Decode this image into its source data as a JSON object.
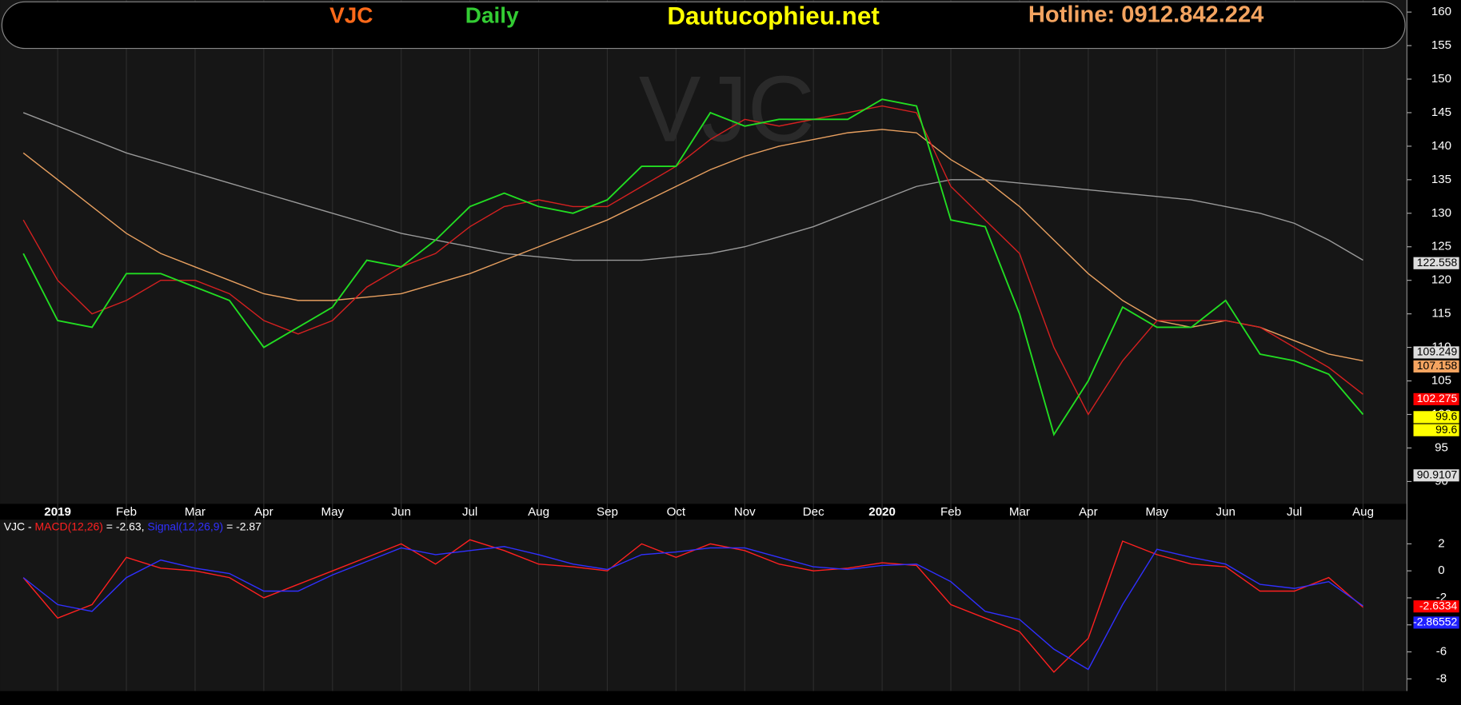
{
  "header": {
    "symbol": "VJC",
    "period": "Daily",
    "site": "Dautucophieu.net",
    "hotline": "Hotline: 0912.842.224",
    "watermark": "VJC"
  },
  "macd_legend": {
    "prefix": "VJC - ",
    "macd": "MACD(12,26)",
    "macd_value": " = -2.63, ",
    "signal": "Signal(12,26,9)",
    "signal_value": " = -2.87"
  },
  "chart_data": [
    {
      "type": "line",
      "categories": [
        null,
        "2019",
        null,
        "Feb",
        null,
        "Mar",
        null,
        "Apr",
        null,
        "May",
        null,
        "Jun",
        null,
        "Jul",
        null,
        "Aug",
        null,
        "Sep",
        null,
        "Oct",
        null,
        "Nov",
        null,
        "Dec",
        null,
        "2020",
        null,
        "Feb",
        null,
        "Mar",
        null,
        "Apr",
        null,
        "May",
        null,
        "Jun",
        null,
        "Jul",
        null,
        "Aug"
      ],
      "series": [
        {
          "color": "#9a9a9a",
          "values": [
            145,
            143,
            141,
            139,
            137.5,
            136,
            134.5,
            133,
            131.5,
            130,
            128.5,
            127,
            126,
            125,
            124,
            123.5,
            123,
            123,
            123,
            123.5,
            124,
            125,
            126.5,
            128,
            130,
            132,
            134,
            135,
            135,
            134.5,
            134,
            133.5,
            133,
            132.5,
            132,
            131,
            130,
            128.5,
            126,
            123
          ]
        },
        {
          "color": "#e8a060",
          "values": [
            139,
            135,
            131,
            127,
            124,
            122,
            120,
            118,
            117,
            117,
            117.5,
            118,
            119.5,
            121,
            123,
            125,
            127,
            129,
            131.5,
            134,
            136.5,
            138.5,
            140,
            141,
            142,
            142.5,
            142,
            138,
            135,
            131,
            126,
            121,
            117,
            114,
            113,
            114,
            113,
            111,
            109,
            108
          ]
        },
        {
          "color": "#d42020",
          "values": [
            129,
            120,
            115,
            117,
            120,
            120,
            118,
            114,
            112,
            114,
            119,
            122,
            124,
            128,
            131,
            132,
            131,
            131,
            134,
            137,
            141,
            144,
            143,
            144,
            145,
            146,
            145,
            134,
            129,
            124,
            110,
            100,
            108,
            114,
            114,
            114,
            113,
            110,
            107,
            103
          ]
        },
        {
          "color": "#22dd22",
          "values": [
            124,
            114,
            113,
            121,
            121,
            119,
            117,
            110,
            113,
            116,
            123,
            122,
            126,
            131,
            133,
            131,
            130,
            132,
            137,
            137,
            145,
            143,
            144,
            144,
            144,
            147,
            146,
            129,
            128,
            115,
            97,
            105,
            116,
            113,
            113,
            117,
            109,
            108,
            106,
            100
          ]
        }
      ],
      "ylim": [
        86.67,
        161.8
      ],
      "yticks": [
        90,
        95,
        100,
        105,
        110,
        115,
        120,
        125,
        130,
        135,
        140,
        145,
        150,
        155,
        160
      ],
      "price_labels": [
        {
          "value": 122.558,
          "color": "#dddddd"
        },
        {
          "value": 109.249,
          "color": "#dddddd"
        },
        {
          "value": 107.158,
          "color": "#f4a460"
        },
        {
          "value": 102.275,
          "color": "#ff0000"
        },
        {
          "value": 99.6,
          "color": "#ffff00"
        },
        {
          "value": 99.6,
          "color": "#ffff00"
        },
        {
          "value": 90.9107,
          "color": "#dddddd"
        }
      ]
    },
    {
      "type": "line",
      "series": [
        {
          "color": "#ff2020",
          "values": [
            -0.5,
            -3.5,
            -2.5,
            1,
            0.2,
            0,
            -0.5,
            -2,
            -1,
            0,
            1,
            2,
            0.5,
            2.3,
            1.5,
            0.5,
            0.3,
            0,
            2,
            1,
            2,
            1.5,
            0.5,
            0,
            0.2,
            0.6,
            0.4,
            -2.5,
            -3.5,
            -4.5,
            -7.5,
            -5,
            2.2,
            1.2,
            0.5,
            0.3,
            -1.5,
            -1.5,
            -0.5,
            -2.7
          ]
        },
        {
          "color": "#3030ff",
          "values": [
            -0.5,
            -2.5,
            -3,
            -0.5,
            0.8,
            0.2,
            -0.2,
            -1.5,
            -1.5,
            -0.3,
            0.7,
            1.7,
            1.2,
            1.5,
            1.8,
            1.2,
            0.5,
            0.1,
            1.2,
            1.4,
            1.7,
            1.7,
            1,
            0.3,
            0.1,
            0.4,
            0.5,
            -0.8,
            -3,
            -3.6,
            -5.8,
            -7.3,
            -2.5,
            1.6,
            1,
            0.5,
            -1,
            -1.3,
            -0.8,
            -2.6
          ]
        }
      ],
      "ylim": [
        -8.9,
        3.79
      ],
      "yticks": [
        2,
        0,
        -2,
        -4,
        -6,
        -8
      ],
      "price_labels": [
        {
          "value": -2.6334,
          "color": "#ff0000"
        },
        {
          "value": -2.86552,
          "color": "#2020ff"
        }
      ]
    }
  ]
}
